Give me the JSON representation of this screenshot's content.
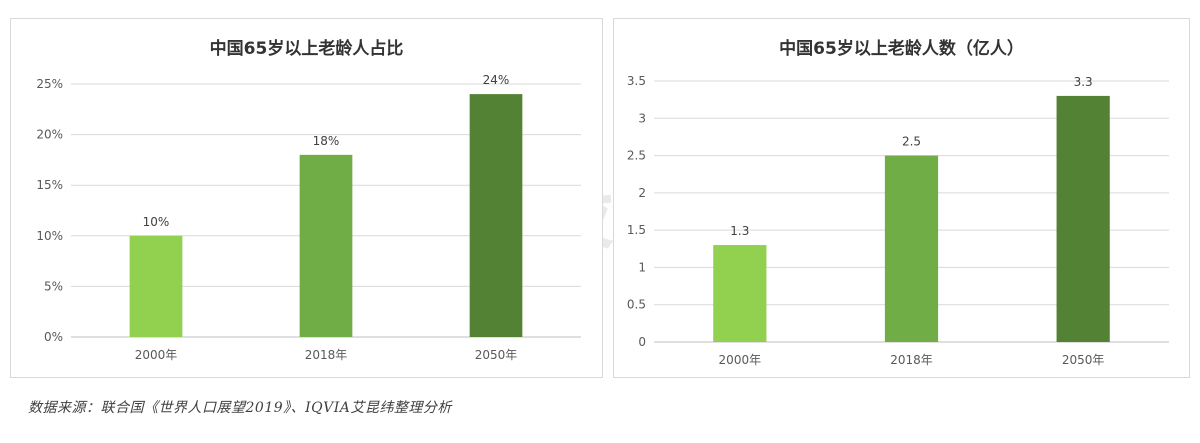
{
  "charts": [
    {
      "title": "中国65岁以上老龄人占比",
      "value_suffix": "%"
    },
    {
      "title": "中国65岁以上老龄人数（亿人）",
      "value_suffix": ""
    }
  ],
  "chart_data": [
    {
      "type": "bar",
      "title": "中国65岁以上老龄人占比",
      "categories": [
        "2000年",
        "2018年",
        "2050年"
      ],
      "values": [
        10,
        18,
        24
      ],
      "data_labels": [
        "10%",
        "18%",
        "24%"
      ],
      "y_ticks": [
        "0%",
        "5%",
        "10%",
        "15%",
        "20%",
        "25%"
      ],
      "ylim": [
        0,
        25
      ],
      "ytick_step": 5,
      "grid": true,
      "colors": [
        "#92d050",
        "#70ad47",
        "#548235"
      ]
    },
    {
      "type": "bar",
      "title": "中国65岁以上老龄人数（亿人）",
      "categories": [
        "2000年",
        "2018年",
        "2050年"
      ],
      "values": [
        1.3,
        2.5,
        3.3
      ],
      "data_labels": [
        "1.3",
        "2.5",
        "3.3"
      ],
      "y_ticks": [
        "0",
        "0.5",
        "1",
        "1.5",
        "2",
        "2.5",
        "3",
        "3.5"
      ],
      "ylim": [
        0,
        3.5
      ],
      "ytick_step": 0.5,
      "grid": true,
      "colors": [
        "#92d050",
        "#70ad47",
        "#548235"
      ]
    }
  ],
  "source": "数据来源：联合国《世界人口展望2019》、IQVIA艾昆纬整理分析",
  "watermark": "港股研究社"
}
